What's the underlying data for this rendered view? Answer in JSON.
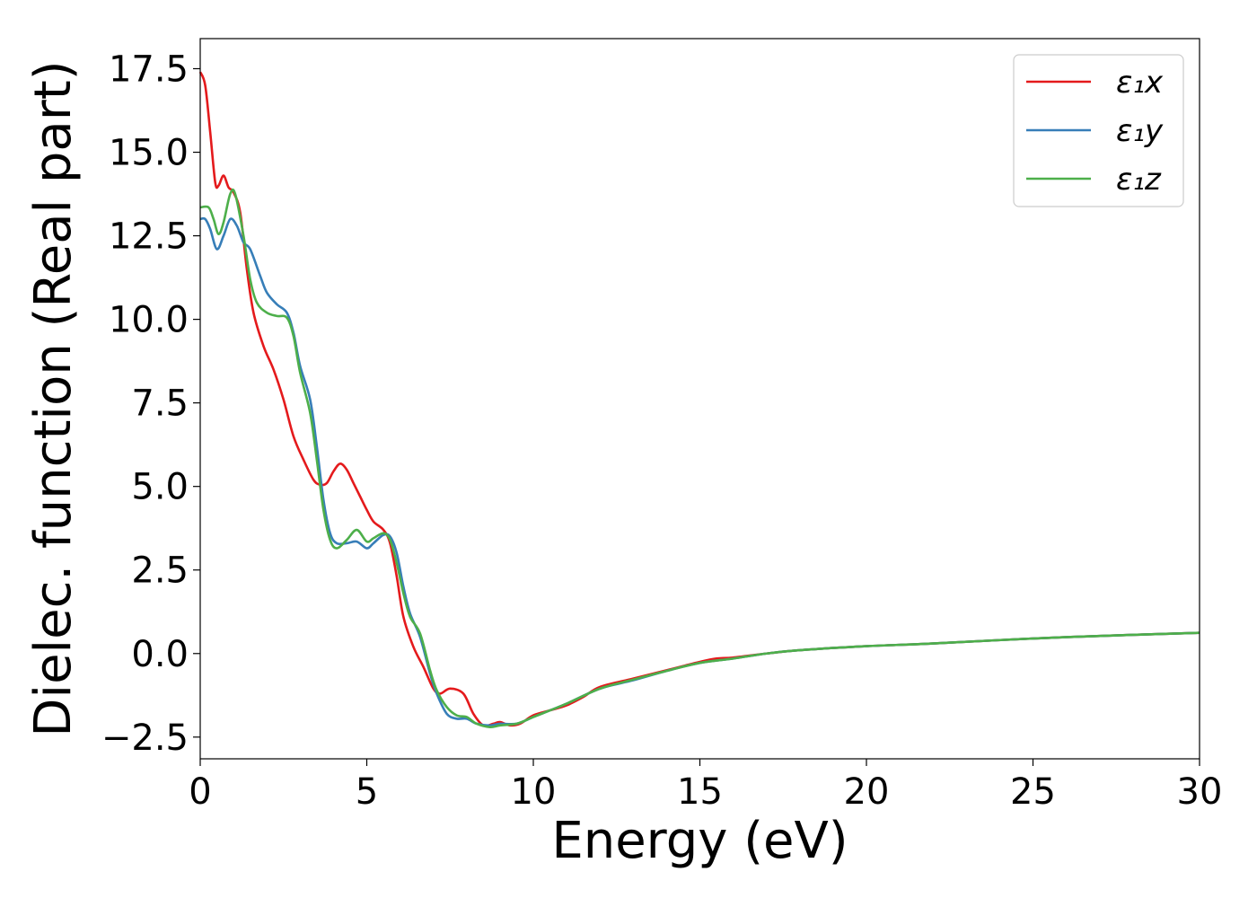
{
  "chart_data": {
    "type": "line",
    "title": "",
    "xlabel": "Energy (eV)",
    "ylabel": "Dielec. function (Real part)",
    "xlim": [
      0,
      30
    ],
    "ylim": [
      -3.15,
      18.4
    ],
    "xticks": [
      0,
      5,
      10,
      15,
      20,
      25,
      30
    ],
    "xtick_labels": [
      "0",
      "5",
      "10",
      "15",
      "20",
      "25",
      "30"
    ],
    "yticks": [
      -2.5,
      0.0,
      2.5,
      5.0,
      7.5,
      10.0,
      12.5,
      15.0,
      17.5
    ],
    "ytick_labels": [
      "−2.5",
      "0.0",
      "2.5",
      "5.0",
      "7.5",
      "10.0",
      "12.5",
      "15.0",
      "17.5"
    ],
    "grid": false,
    "legend": {
      "position": "top-right"
    },
    "series": [
      {
        "name": "ε₁x",
        "color": "#e41a1c",
        "points": [
          [
            0,
            17.4
          ],
          [
            0.15,
            17.0
          ],
          [
            0.3,
            15.6
          ],
          [
            0.45,
            14.1
          ],
          [
            0.55,
            14.0
          ],
          [
            0.7,
            14.3
          ],
          [
            0.85,
            13.95
          ],
          [
            1.0,
            13.8
          ],
          [
            1.2,
            13.2
          ],
          [
            1.4,
            11.5
          ],
          [
            1.6,
            10.2
          ],
          [
            1.9,
            9.2
          ],
          [
            2.2,
            8.5
          ],
          [
            2.5,
            7.6
          ],
          [
            2.8,
            6.5
          ],
          [
            3.1,
            5.8
          ],
          [
            3.4,
            5.2
          ],
          [
            3.6,
            5.05
          ],
          [
            3.8,
            5.1
          ],
          [
            4.0,
            5.45
          ],
          [
            4.2,
            5.68
          ],
          [
            4.4,
            5.5
          ],
          [
            4.6,
            5.1
          ],
          [
            4.8,
            4.7
          ],
          [
            5.0,
            4.3
          ],
          [
            5.2,
            3.95
          ],
          [
            5.5,
            3.7
          ],
          [
            5.7,
            3.3
          ],
          [
            5.9,
            2.3
          ],
          [
            6.1,
            1.1
          ],
          [
            6.4,
            0.2
          ],
          [
            6.7,
            -0.4
          ],
          [
            7.0,
            -1.05
          ],
          [
            7.2,
            -1.2
          ],
          [
            7.5,
            -1.05
          ],
          [
            7.9,
            -1.2
          ],
          [
            8.2,
            -1.8
          ],
          [
            8.5,
            -2.15
          ],
          [
            8.8,
            -2.1
          ],
          [
            9.0,
            -2.05
          ],
          [
            9.3,
            -2.15
          ],
          [
            9.6,
            -2.1
          ],
          [
            10.0,
            -1.85
          ],
          [
            10.5,
            -1.7
          ],
          [
            11.0,
            -1.55
          ],
          [
            11.5,
            -1.3
          ],
          [
            12.0,
            -1.0
          ],
          [
            13.0,
            -0.75
          ],
          [
            14.0,
            -0.5
          ],
          [
            15.0,
            -0.25
          ],
          [
            15.5,
            -0.15
          ],
          [
            16.0,
            -0.12
          ],
          [
            17.0,
            0.0
          ],
          [
            18.0,
            0.1
          ],
          [
            20.0,
            0.22
          ],
          [
            22.0,
            0.3
          ],
          [
            25.0,
            0.45
          ],
          [
            28.0,
            0.56
          ],
          [
            30.0,
            0.62
          ]
        ]
      },
      {
        "name": "ε₁y",
        "color": "#377eb8",
        "points": [
          [
            0,
            13.0
          ],
          [
            0.15,
            13.0
          ],
          [
            0.3,
            12.7
          ],
          [
            0.5,
            12.1
          ],
          [
            0.7,
            12.5
          ],
          [
            0.9,
            13.0
          ],
          [
            1.1,
            12.8
          ],
          [
            1.3,
            12.3
          ],
          [
            1.5,
            12.1
          ],
          [
            1.8,
            11.3
          ],
          [
            2.0,
            10.8
          ],
          [
            2.3,
            10.45
          ],
          [
            2.6,
            10.2
          ],
          [
            2.8,
            9.6
          ],
          [
            3.0,
            8.6
          ],
          [
            3.3,
            7.6
          ],
          [
            3.5,
            6.2
          ],
          [
            3.7,
            4.6
          ],
          [
            3.9,
            3.6
          ],
          [
            4.1,
            3.3
          ],
          [
            4.4,
            3.3
          ],
          [
            4.7,
            3.35
          ],
          [
            5.0,
            3.15
          ],
          [
            5.2,
            3.3
          ],
          [
            5.5,
            3.55
          ],
          [
            5.7,
            3.5
          ],
          [
            5.9,
            3.0
          ],
          [
            6.1,
            2.0
          ],
          [
            6.3,
            1.2
          ],
          [
            6.6,
            0.5
          ],
          [
            6.9,
            -0.6
          ],
          [
            7.1,
            -1.2
          ],
          [
            7.4,
            -1.8
          ],
          [
            7.7,
            -1.95
          ],
          [
            8.0,
            -1.95
          ],
          [
            8.3,
            -2.1
          ],
          [
            8.7,
            -2.15
          ],
          [
            9.0,
            -2.1
          ],
          [
            9.5,
            -2.1
          ],
          [
            10.0,
            -1.9
          ],
          [
            10.5,
            -1.7
          ],
          [
            11.0,
            -1.5
          ],
          [
            12.0,
            -1.05
          ],
          [
            13.0,
            -0.8
          ],
          [
            14.0,
            -0.52
          ],
          [
            15.0,
            -0.28
          ],
          [
            16.0,
            -0.15
          ],
          [
            17.0,
            0.0
          ],
          [
            18.0,
            0.1
          ],
          [
            20.0,
            0.22
          ],
          [
            22.0,
            0.3
          ],
          [
            25.0,
            0.45
          ],
          [
            28.0,
            0.56
          ],
          [
            30.0,
            0.62
          ]
        ]
      },
      {
        "name": "ε₁z",
        "color": "#4daf4a",
        "points": [
          [
            0,
            13.35
          ],
          [
            0.25,
            13.35
          ],
          [
            0.4,
            13.0
          ],
          [
            0.55,
            12.55
          ],
          [
            0.7,
            12.9
          ],
          [
            0.9,
            13.75
          ],
          [
            1.05,
            13.75
          ],
          [
            1.3,
            12.5
          ],
          [
            1.5,
            11.2
          ],
          [
            1.7,
            10.5
          ],
          [
            2.0,
            10.2
          ],
          [
            2.3,
            10.1
          ],
          [
            2.6,
            10.05
          ],
          [
            2.8,
            9.5
          ],
          [
            3.0,
            8.4
          ],
          [
            3.3,
            7.2
          ],
          [
            3.5,
            5.8
          ],
          [
            3.7,
            4.3
          ],
          [
            3.9,
            3.4
          ],
          [
            4.1,
            3.15
          ],
          [
            4.4,
            3.4
          ],
          [
            4.7,
            3.7
          ],
          [
            5.0,
            3.35
          ],
          [
            5.2,
            3.45
          ],
          [
            5.5,
            3.6
          ],
          [
            5.7,
            3.4
          ],
          [
            5.9,
            2.7
          ],
          [
            6.1,
            1.8
          ],
          [
            6.3,
            1.1
          ],
          [
            6.6,
            0.6
          ],
          [
            6.9,
            -0.5
          ],
          [
            7.1,
            -1.1
          ],
          [
            7.4,
            -1.6
          ],
          [
            7.7,
            -1.85
          ],
          [
            8.0,
            -1.9
          ],
          [
            8.3,
            -2.1
          ],
          [
            8.7,
            -2.2
          ],
          [
            9.0,
            -2.15
          ],
          [
            9.5,
            -2.1
          ],
          [
            10.0,
            -1.9
          ],
          [
            10.5,
            -1.7
          ],
          [
            11.0,
            -1.5
          ],
          [
            12.0,
            -1.05
          ],
          [
            13.0,
            -0.78
          ],
          [
            14.0,
            -0.52
          ],
          [
            15.0,
            -0.28
          ],
          [
            16.0,
            -0.15
          ],
          [
            17.0,
            0.0
          ],
          [
            18.0,
            0.1
          ],
          [
            20.0,
            0.22
          ],
          [
            22.0,
            0.3
          ],
          [
            25.0,
            0.45
          ],
          [
            28.0,
            0.56
          ],
          [
            30.0,
            0.62
          ]
        ]
      }
    ]
  }
}
